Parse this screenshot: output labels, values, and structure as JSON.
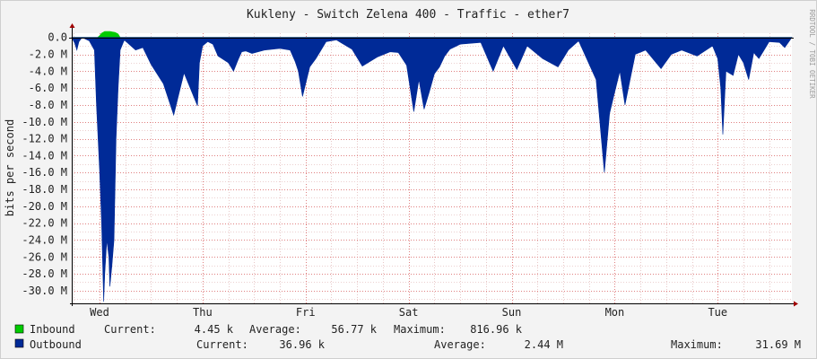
{
  "chart_data": {
    "type": "area",
    "title": "Kukleny - Switch Zelena 400 - Traffic - ether7",
    "ylabel": "bits per second",
    "xlabel": "",
    "watermark": "RRDTOOL / TOBI OETIKER",
    "ylim": [
      -31.5,
      0.5
    ],
    "y_ticks": [
      "0.0",
      "-2.0 M",
      "-4.0 M",
      "-6.0 M",
      "-8.0 M",
      "-10.0 M",
      "-12.0 M",
      "-14.0 M",
      "-16.0 M",
      "-18.0 M",
      "-20.0 M",
      "-22.0 M",
      "-24.0 M",
      "-26.0 M",
      "-28.0 M",
      "-30.0 M"
    ],
    "y_tick_values": [
      0,
      -2,
      -4,
      -6,
      -8,
      -10,
      -12,
      -14,
      -16,
      -18,
      -20,
      -22,
      -24,
      -26,
      -28,
      -30
    ],
    "x_days": [
      "Wed",
      "Thu",
      "Fri",
      "Sat",
      "Sun",
      "Mon",
      "Tue"
    ],
    "x_day_positions": [
      0,
      1,
      2,
      3,
      4,
      5,
      6
    ],
    "x_range": [
      -0.27,
      6.72
    ],
    "series": [
      {
        "name": "Inbound",
        "color": "#00cc00",
        "x": [
          -0.27,
          -0.02,
          0.0,
          0.02,
          0.05,
          0.1,
          0.15,
          0.18,
          0.2,
          0.3,
          2.9,
          3.2,
          6.0,
          6.3,
          6.72
        ],
        "values": [
          0.0,
          0.0,
          0.2,
          0.5,
          0.7,
          0.7,
          0.6,
          0.4,
          0.0,
          0.0,
          0.0,
          0.0,
          0.0,
          0.0,
          0.0
        ]
      },
      {
        "name": "Outbound",
        "color": "#002a97",
        "x": [
          -0.27,
          -0.24,
          -0.22,
          -0.2,
          -0.17,
          -0.1,
          -0.05,
          -0.03,
          0.0,
          0.02,
          0.04,
          0.05,
          0.07,
          0.09,
          0.1,
          0.12,
          0.14,
          0.16,
          0.18,
          0.2,
          0.24,
          0.35,
          0.42,
          0.5,
          0.62,
          0.72,
          0.82,
          0.95,
          0.97,
          1.0,
          1.05,
          1.1,
          1.15,
          1.25,
          1.3,
          1.35,
          1.38,
          1.42,
          1.48,
          1.6,
          1.75,
          1.85,
          1.9,
          1.93,
          1.97,
          2.0,
          2.04,
          2.1,
          2.15,
          2.2,
          2.3,
          2.45,
          2.55,
          2.7,
          2.82,
          2.9,
          2.98,
          3.05,
          3.1,
          3.15,
          3.2,
          3.25,
          3.3,
          3.35,
          3.4,
          3.5,
          3.7,
          3.82,
          3.92,
          4.05,
          4.15,
          4.3,
          4.45,
          4.55,
          4.65,
          4.82,
          4.9,
          4.95,
          5.0,
          5.05,
          5.1,
          5.15,
          5.2,
          5.3,
          5.45,
          5.55,
          5.65,
          5.8,
          5.95,
          6.0,
          6.03,
          6.05,
          6.08,
          6.15,
          6.2,
          6.25,
          6.3,
          6.35,
          6.4,
          6.45,
          6.5,
          6.6,
          6.65,
          6.72
        ],
        "values": [
          0,
          -0.7,
          -1.5,
          -0.5,
          0,
          -0.4,
          -1.5,
          -8,
          -15.6,
          -22,
          -31.3,
          -28,
          -24,
          -26,
          -29.5,
          -27,
          -24,
          -12,
          -6,
          -1.5,
          -0.3,
          -1.5,
          -1.2,
          -3.2,
          -5.5,
          -9.2,
          -4.2,
          -8.1,
          -3,
          -1,
          -0.5,
          -0.8,
          -2.2,
          -3,
          -4,
          -2.5,
          -1.7,
          -1.6,
          -1.9,
          -1.5,
          -1.3,
          -1.5,
          -2.9,
          -4,
          -7,
          -5.5,
          -3.5,
          -2.5,
          -1.5,
          -0.5,
          -0.3,
          -1.4,
          -3.4,
          -2.3,
          -1.7,
          -1.8,
          -3.3,
          -8.8,
          -5,
          -8.5,
          -6.5,
          -4.3,
          -3.5,
          -2.2,
          -1.4,
          -0.8,
          -0.6,
          -4,
          -1,
          -3.8,
          -1,
          -2.5,
          -3.5,
          -1.5,
          -0.4,
          -5,
          -16,
          -9,
          -6.5,
          -4,
          -8,
          -5,
          -2,
          -1.5,
          -3.7,
          -2,
          -1.5,
          -2.2,
          -1,
          -2.5,
          -6,
          -11.5,
          -4,
          -4.5,
          -2,
          -3,
          -5,
          -1.8,
          -2.5,
          -1.5,
          -0.5,
          -0.6,
          -1.2,
          0
        ]
      }
    ],
    "legend": [
      {
        "name": "Inbound",
        "color": "#00cc00",
        "current_label": "Current:",
        "current": "4.45 k",
        "average_label": "Average:",
        "average": "56.77 k",
        "maximum_label": "Maximum:",
        "maximum": "816.96 k"
      },
      {
        "name": "Outbound",
        "color": "#002a97",
        "current_label": "Current:",
        "current": "36.96 k",
        "average_label": "Average:",
        "average": "2.44 M",
        "maximum_label": "Maximum:",
        "maximum": "31.69 M"
      }
    ]
  }
}
